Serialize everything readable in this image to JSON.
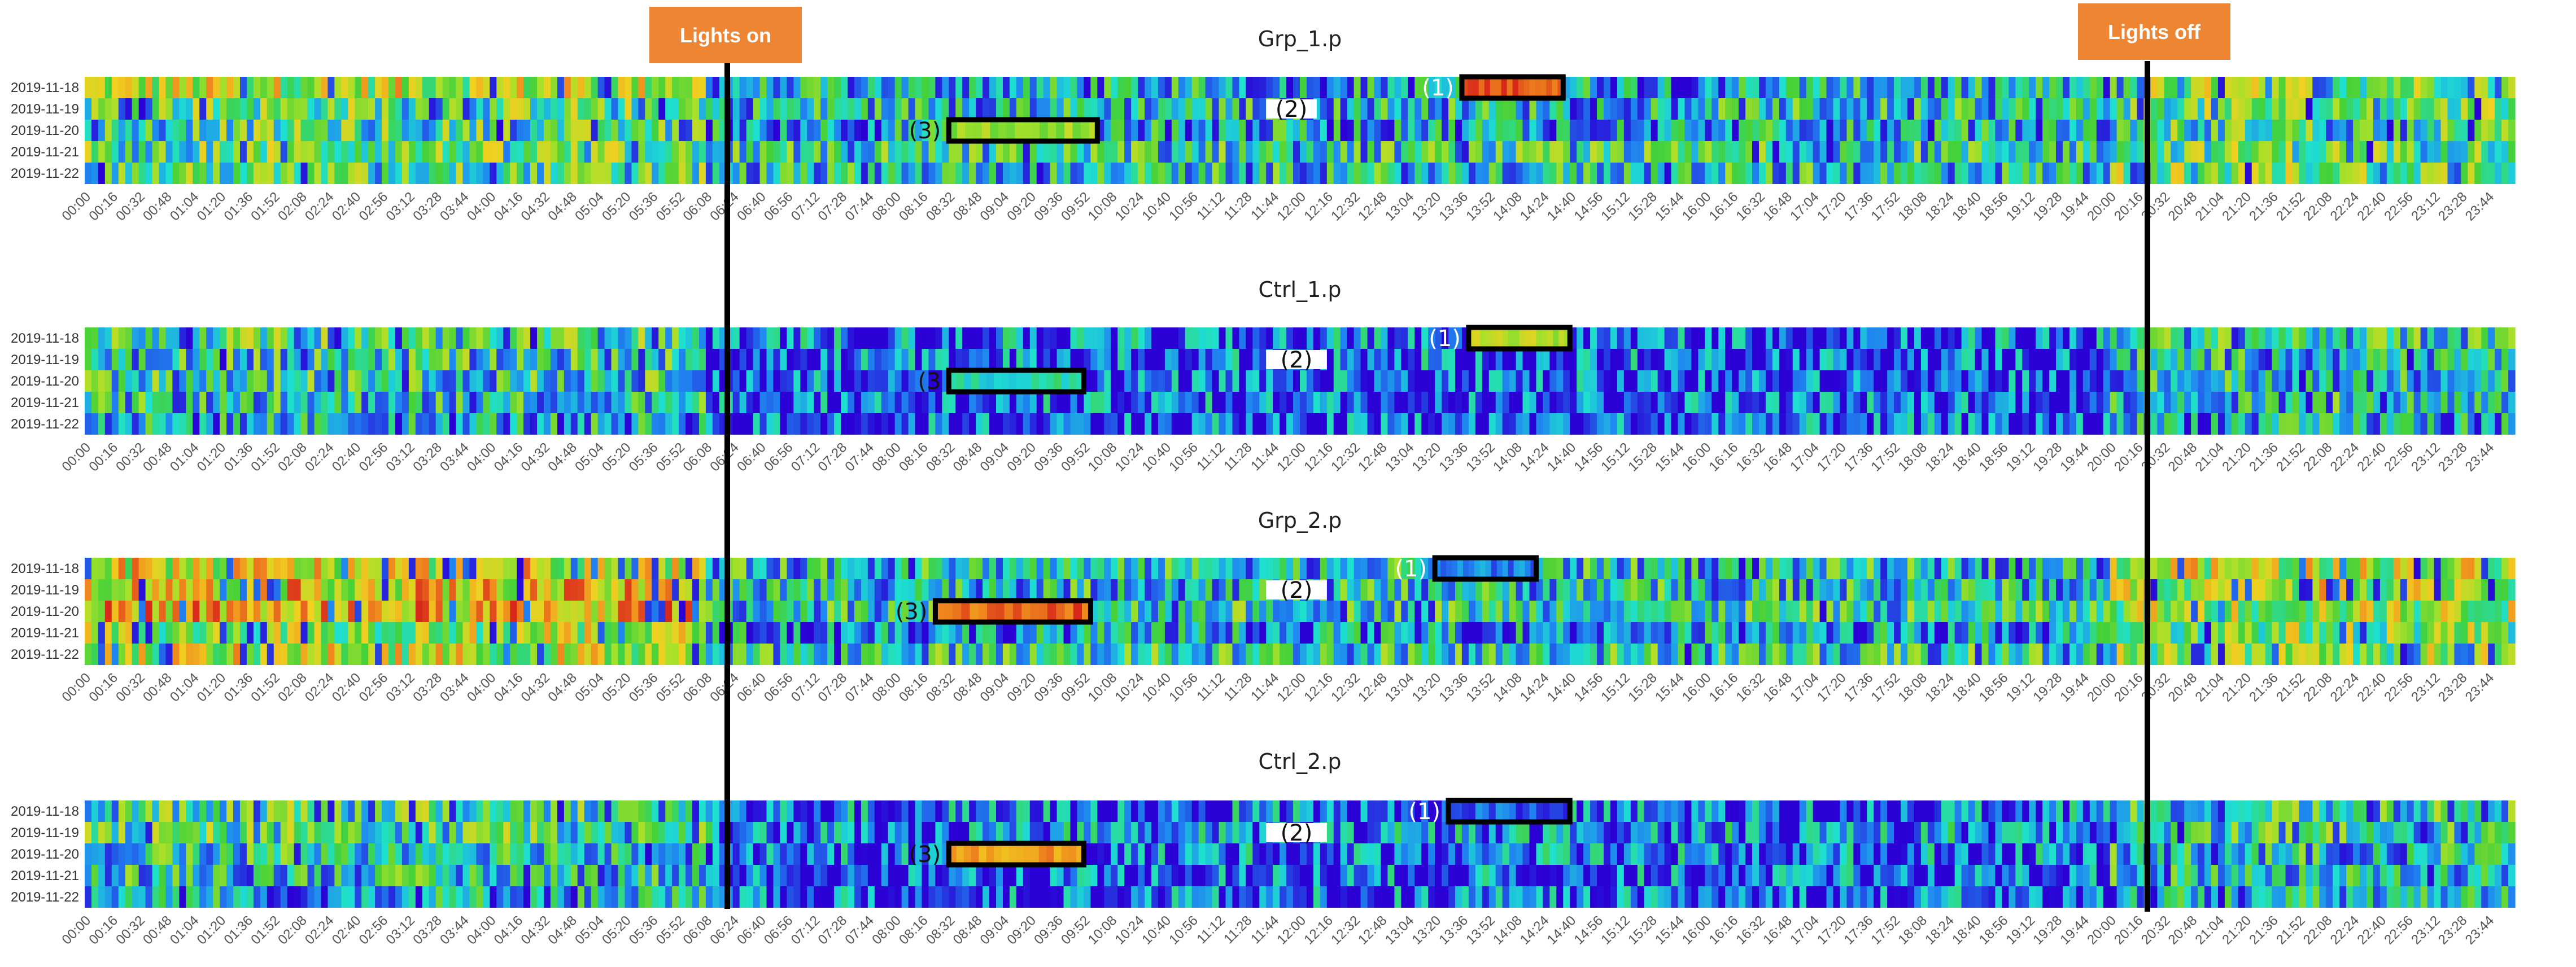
{
  "markers": {
    "lights_on": "Lights on",
    "lights_off": "Lights off",
    "lights_on_time": "06:08",
    "lights_off_time": "20:00",
    "flag_color": "#ee8533",
    "line_color": "#000000"
  },
  "chart_data": [
    {
      "type": "heatmap",
      "title": "Grp_1.p",
      "rows": [
        "2019-11-18",
        "2019-11-19",
        "2019-11-20",
        "2019-11-21",
        "2019-11-22"
      ],
      "x_tick_labels": [
        "00:00",
        "00:16",
        "00:32",
        "00:48",
        "01:04",
        "01:20",
        "01:36",
        "01:52",
        "02:08",
        "02:24",
        "02:40",
        "02:56",
        "03:12",
        "03:28",
        "03:44",
        "04:00",
        "04:16",
        "04:32",
        "04:48",
        "05:04",
        "05:20",
        "05:36",
        "05:52",
        "06:08",
        "06:24",
        "06:40",
        "06:56",
        "07:12",
        "07:28",
        "07:44",
        "08:00",
        "08:16",
        "08:32",
        "08:48",
        "09:04",
        "09:20",
        "09:36",
        "09:52",
        "10:08",
        "10:24",
        "10:40",
        "10:56",
        "11:12",
        "11:28",
        "11:44",
        "12:00",
        "12:16",
        "12:32",
        "12:48",
        "13:04",
        "13:20",
        "13:36",
        "13:52",
        "14:08",
        "14:24",
        "14:40",
        "14:56",
        "15:12",
        "15:28",
        "15:44",
        "16:00",
        "16:16",
        "16:32",
        "16:48",
        "17:04",
        "17:20",
        "17:36",
        "17:52",
        "18:08",
        "18:24",
        "18:40",
        "18:56",
        "19:12",
        "19:28",
        "19:44",
        "20:00",
        "20:16",
        "20:32",
        "20:48",
        "21:04",
        "21:20",
        "21:36",
        "21:52",
        "22:08",
        "22:24",
        "22:40",
        "22:56",
        "23:12",
        "23:28",
        "23:44"
      ],
      "x_range": [
        "00:00",
        "23:59"
      ],
      "colorscale": [
        "#2a00d5",
        "#1f86f0",
        "#1ee0d0",
        "#43d13a",
        "#a8e02a",
        "#f0d020",
        "#f08a1e",
        "#d8281a"
      ],
      "row_profiles": {
        "2019-11-18": {
          "night": 0.6,
          "day": 0.25,
          "evening": 0.5
        },
        "2019-11-19": {
          "night": 0.45,
          "day": 0.3,
          "evening": 0.45
        },
        "2019-11-20": {
          "night": 0.4,
          "day": 0.25,
          "evening": 0.4
        },
        "2019-11-21": {
          "night": 0.45,
          "day": 0.35,
          "evening": 0.45
        },
        "2019-11-22": {
          "night": 0.4,
          "day": 0.3,
          "evening": 0.5
        }
      },
      "annotations": [
        {
          "label": "(1)",
          "row_start": "2019-11-18",
          "row_end": "2019-11-18",
          "t_start": "13:36",
          "t_end": "14:36",
          "fill_level": 0.95
        },
        {
          "label": "(2)",
          "row_start": "2019-11-19",
          "row_end": "2019-11-19",
          "t_start": "11:40",
          "t_end": "12:10",
          "blank": true
        },
        {
          "label": "(3)",
          "row_start": "2019-11-20",
          "row_end": "2019-11-20",
          "t_start": "08:32",
          "t_end": "10:00",
          "fill_level": 0.55
        }
      ]
    },
    {
      "type": "heatmap",
      "title": "Ctrl_1.p",
      "rows": [
        "2019-11-18",
        "2019-11-19",
        "2019-11-20",
        "2019-11-21",
        "2019-11-22"
      ],
      "x_tick_labels": [
        "00:00",
        "00:16",
        "00:32",
        "00:48",
        "01:04",
        "01:20",
        "01:36",
        "01:52",
        "02:08",
        "02:24",
        "02:40",
        "02:56",
        "03:12",
        "03:28",
        "03:44",
        "04:00",
        "04:16",
        "04:32",
        "04:48",
        "05:04",
        "05:20",
        "05:36",
        "05:52",
        "06:08",
        "06:24",
        "06:40",
        "06:56",
        "07:12",
        "07:28",
        "07:44",
        "08:00",
        "08:16",
        "08:32",
        "08:48",
        "09:04",
        "09:20",
        "09:36",
        "09:52",
        "10:08",
        "10:24",
        "10:40",
        "10:56",
        "11:12",
        "11:28",
        "11:44",
        "12:00",
        "12:16",
        "12:32",
        "12:48",
        "13:04",
        "13:20",
        "13:36",
        "13:52",
        "14:08",
        "14:24",
        "14:40",
        "14:56",
        "15:12",
        "15:28",
        "15:44",
        "16:00",
        "16:16",
        "16:32",
        "16:48",
        "17:04",
        "17:20",
        "17:36",
        "17:52",
        "18:08",
        "18:24",
        "18:40",
        "18:56",
        "19:12",
        "19:28",
        "19:44",
        "20:00",
        "20:16",
        "20:32",
        "20:48",
        "21:04",
        "21:20",
        "21:36",
        "21:52",
        "22:08",
        "22:24",
        "22:40",
        "22:56",
        "23:12",
        "23:28",
        "23:44"
      ],
      "x_range": [
        "00:00",
        "23:59"
      ],
      "colorscale": [
        "#2a00d5",
        "#1f86f0",
        "#1ee0d0",
        "#43d13a",
        "#a8e02a",
        "#f0d020",
        "#f08a1e",
        "#d8281a"
      ],
      "row_profiles": {
        "2019-11-18": {
          "night": 0.4,
          "day": 0.12,
          "evening": 0.35
        },
        "2019-11-19": {
          "night": 0.35,
          "day": 0.1,
          "evening": 0.3
        },
        "2019-11-20": {
          "night": 0.35,
          "day": 0.08,
          "evening": 0.3
        },
        "2019-11-21": {
          "night": 0.3,
          "day": 0.1,
          "evening": 0.3
        },
        "2019-11-22": {
          "night": 0.25,
          "day": 0.08,
          "evening": 0.25
        }
      },
      "annotations": [
        {
          "label": "(1)",
          "row_start": "2019-11-18",
          "row_end": "2019-11-18",
          "t_start": "13:40",
          "t_end": "14:40",
          "fill_level": 0.6
        },
        {
          "label": "(2)",
          "row_start": "2019-11-19",
          "row_end": "2019-11-19",
          "t_start": "11:40",
          "t_end": "12:16",
          "blank": true
        },
        {
          "label": "(3",
          "row_start": "2019-11-20",
          "row_end": "2019-11-20",
          "t_start": "08:32",
          "t_end": "09:52",
          "fill_level": 0.3
        }
      ]
    },
    {
      "type": "heatmap",
      "title": "Grp_2.p",
      "rows": [
        "2019-11-18",
        "2019-11-19",
        "2019-11-20",
        "2019-11-21",
        "2019-11-22"
      ],
      "x_tick_labels": [
        "00:00",
        "00:16",
        "00:32",
        "00:48",
        "01:04",
        "01:20",
        "01:36",
        "01:52",
        "02:08",
        "02:24",
        "02:40",
        "02:56",
        "03:12",
        "03:28",
        "03:44",
        "04:00",
        "04:16",
        "04:32",
        "04:48",
        "05:04",
        "05:20",
        "05:36",
        "05:52",
        "06:08",
        "06:24",
        "06:40",
        "06:56",
        "07:12",
        "07:28",
        "07:44",
        "08:00",
        "08:16",
        "08:32",
        "08:48",
        "09:04",
        "09:20",
        "09:36",
        "09:52",
        "10:08",
        "10:24",
        "10:40",
        "10:56",
        "11:12",
        "11:28",
        "11:44",
        "12:00",
        "12:16",
        "12:32",
        "12:48",
        "13:04",
        "13:20",
        "13:36",
        "13:52",
        "14:08",
        "14:24",
        "14:40",
        "14:56",
        "15:12",
        "15:28",
        "15:44",
        "16:00",
        "16:16",
        "16:32",
        "16:48",
        "17:04",
        "17:20",
        "17:36",
        "17:52",
        "18:08",
        "18:24",
        "18:40",
        "18:56",
        "19:12",
        "19:28",
        "19:44",
        "20:00",
        "20:16",
        "20:32",
        "20:48",
        "21:04",
        "21:20",
        "21:36",
        "21:52",
        "22:08",
        "22:24",
        "22:40",
        "22:56",
        "23:12",
        "23:28",
        "23:44"
      ],
      "x_range": [
        "00:00",
        "23:59"
      ],
      "colorscale": [
        "#2a00d5",
        "#1f86f0",
        "#1ee0d0",
        "#43d13a",
        "#a8e02a",
        "#f0d020",
        "#f08a1e",
        "#d8281a"
      ],
      "row_profiles": {
        "2019-11-18": {
          "night": 0.65,
          "day": 0.3,
          "evening": 0.6
        },
        "2019-11-19": {
          "night": 0.7,
          "day": 0.3,
          "evening": 0.6
        },
        "2019-11-20": {
          "night": 0.75,
          "day": 0.35,
          "evening": 0.55
        },
        "2019-11-21": {
          "night": 0.55,
          "day": 0.2,
          "evening": 0.5
        },
        "2019-11-22": {
          "night": 0.6,
          "day": 0.35,
          "evening": 0.5
        }
      },
      "annotations": [
        {
          "label": "(1)",
          "row_start": "2019-11-18",
          "row_end": "2019-11-18",
          "t_start": "13:20",
          "t_end": "14:20",
          "fill_level": 0.15
        },
        {
          "label": "(2)",
          "row_start": "2019-11-19",
          "row_end": "2019-11-19",
          "t_start": "11:40",
          "t_end": "12:16",
          "blank": true
        },
        {
          "label": "(3)",
          "row_start": "2019-11-20",
          "row_end": "2019-11-20",
          "t_start": "08:24",
          "t_end": "09:56",
          "fill_level": 0.92
        }
      ]
    },
    {
      "type": "heatmap",
      "title": "Ctrl_2.p",
      "rows": [
        "2019-11-18",
        "2019-11-19",
        "2019-11-20",
        "2019-11-21",
        "2019-11-22"
      ],
      "x_tick_labels": [
        "00:00",
        "00:16",
        "00:32",
        "00:48",
        "01:04",
        "01:20",
        "01:36",
        "01:52",
        "02:08",
        "02:24",
        "02:40",
        "02:56",
        "03:12",
        "03:28",
        "03:44",
        "04:00",
        "04:16",
        "04:32",
        "04:48",
        "05:04",
        "05:20",
        "05:36",
        "05:52",
        "06:08",
        "06:24",
        "06:40",
        "06:56",
        "07:12",
        "07:28",
        "07:44",
        "08:00",
        "08:16",
        "08:32",
        "08:48",
        "09:04",
        "09:20",
        "09:36",
        "09:52",
        "10:08",
        "10:24",
        "10:40",
        "10:56",
        "11:12",
        "11:28",
        "11:44",
        "12:00",
        "12:16",
        "12:32",
        "12:48",
        "13:04",
        "13:20",
        "13:36",
        "13:52",
        "14:08",
        "14:24",
        "14:40",
        "14:56",
        "15:12",
        "15:28",
        "15:44",
        "16:00",
        "16:16",
        "16:32",
        "16:48",
        "17:04",
        "17:20",
        "17:36",
        "17:52",
        "18:08",
        "18:24",
        "18:40",
        "18:56",
        "19:12",
        "19:28",
        "19:44",
        "20:00",
        "20:16",
        "20:32",
        "20:48",
        "21:04",
        "21:20",
        "21:36",
        "21:52",
        "22:08",
        "22:24",
        "22:40",
        "22:56",
        "23:12",
        "23:28",
        "23:44"
      ],
      "x_range": [
        "00:00",
        "23:59"
      ],
      "colorscale": [
        "#2a00d5",
        "#1f86f0",
        "#1ee0d0",
        "#43d13a",
        "#a8e02a",
        "#f0d020",
        "#f08a1e",
        "#d8281a"
      ],
      "row_profiles": {
        "2019-11-18": {
          "night": 0.4,
          "day": 0.12,
          "evening": 0.35
        },
        "2019-11-19": {
          "night": 0.4,
          "day": 0.15,
          "evening": 0.35
        },
        "2019-11-20": {
          "night": 0.35,
          "day": 0.12,
          "evening": 0.3
        },
        "2019-11-21": {
          "night": 0.3,
          "day": 0.1,
          "evening": 0.3
        },
        "2019-11-22": {
          "night": 0.25,
          "day": 0.08,
          "evening": 0.25
        }
      },
      "annotations": [
        {
          "label": "(1)",
          "row_start": "2019-11-18",
          "row_end": "2019-11-18",
          "t_start": "13:28",
          "t_end": "14:40",
          "fill_level": 0.1
        },
        {
          "label": "(2)",
          "row_start": "2019-11-19",
          "row_end": "2019-11-19",
          "t_start": "11:40",
          "t_end": "12:16",
          "blank": true
        },
        {
          "label": "(3)",
          "row_start": "2019-11-20",
          "row_end": "2019-11-20",
          "t_start": "08:32",
          "t_end": "09:52",
          "fill_level": 0.82
        }
      ]
    }
  ]
}
